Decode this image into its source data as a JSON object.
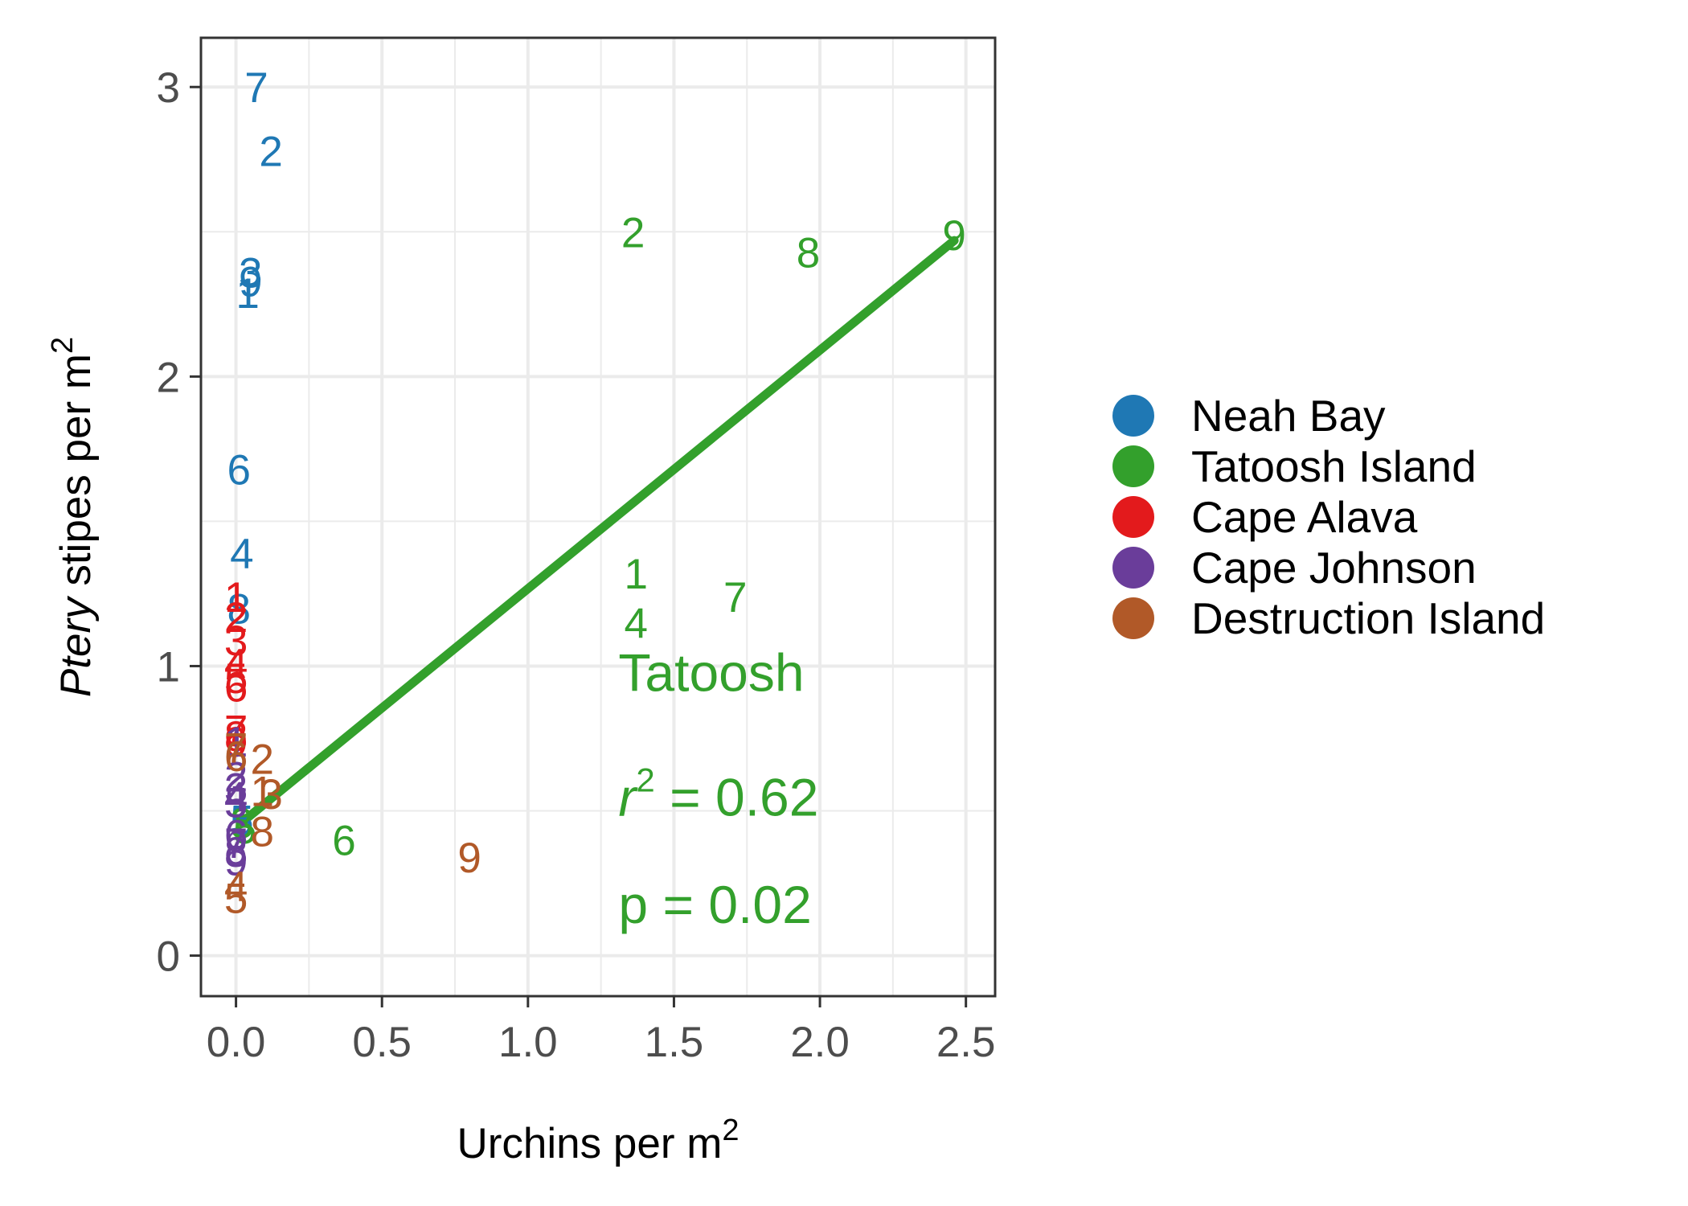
{
  "chart_data": {
    "type": "scatter",
    "xlabel": "Urchins per m",
    "xlabel_sup": "2",
    "ylabel_italic": "Ptery",
    "ylabel": " stipes per m",
    "ylabel_sup": "2",
    "xlim": [
      -0.12,
      2.6
    ],
    "ylim": [
      -0.14,
      3.17
    ],
    "x_ticks": [
      0,
      0.5,
      1,
      1.5,
      2,
      2.5
    ],
    "x_tick_labels": [
      "0.0",
      "0.5",
      "1.0",
      "1.5",
      "2.0",
      "2.5"
    ],
    "y_ticks": [
      0,
      1,
      2,
      3
    ],
    "y_tick_labels": [
      "0",
      "1",
      "2",
      "3"
    ],
    "grid": true,
    "legend_position": "right",
    "series": [
      {
        "name": "Neah Bay",
        "color": "#1f78b4",
        "points": [
          {
            "label": "7",
            "x": 0.07,
            "y": 3.0
          },
          {
            "label": "2",
            "x": 0.12,
            "y": 2.78
          },
          {
            "label": "3",
            "x": 0.05,
            "y": 2.36
          },
          {
            "label": "9",
            "x": 0.05,
            "y": 2.33
          },
          {
            "label": "1",
            "x": 0.04,
            "y": 2.29
          },
          {
            "label": "6",
            "x": 0.01,
            "y": 1.68
          },
          {
            "label": "4",
            "x": 0.02,
            "y": 1.39
          },
          {
            "label": "8",
            "x": 0.01,
            "y": 1.2
          },
          {
            "label": "5",
            "x": 0.02,
            "y": 0.47
          }
        ]
      },
      {
        "name": "Tatoosh Island",
        "color": "#33a02c",
        "points": [
          {
            "label": "2",
            "x": 1.36,
            "y": 2.5
          },
          {
            "label": "8",
            "x": 1.96,
            "y": 2.43
          },
          {
            "label": "9",
            "x": 2.46,
            "y": 2.49
          },
          {
            "label": "1",
            "x": 1.37,
            "y": 1.32
          },
          {
            "label": "7",
            "x": 1.71,
            "y": 1.24
          },
          {
            "label": "4",
            "x": 1.37,
            "y": 1.15
          },
          {
            "label": "6",
            "x": 0.37,
            "y": 0.4
          },
          {
            "label": "3",
            "x": 0.02,
            "y": 0.46
          },
          {
            "label": "5",
            "x": 0.03,
            "y": 0.44
          }
        ]
      },
      {
        "name": "Cape Alava",
        "color": "#e31a1c",
        "points": [
          {
            "label": "1",
            "x": 0.0,
            "y": 1.24
          },
          {
            "label": "2",
            "x": 0.0,
            "y": 1.17
          },
          {
            "label": "3",
            "x": 0.0,
            "y": 1.09
          },
          {
            "label": "4",
            "x": 0.0,
            "y": 1.01
          },
          {
            "label": "5",
            "x": 0.0,
            "y": 0.96
          },
          {
            "label": "6",
            "x": 0.0,
            "y": 0.93
          },
          {
            "label": "7",
            "x": 0.0,
            "y": 0.78
          },
          {
            "label": "8",
            "x": 0.0,
            "y": 0.76
          },
          {
            "label": "9",
            "x": 0.0,
            "y": 0.74
          }
        ]
      },
      {
        "name": "Cape Johnson",
        "color": "#6a3d9a",
        "points": [
          {
            "label": "1",
            "x": 0.0,
            "y": 0.74
          },
          {
            "label": "2",
            "x": 0.0,
            "y": 0.62
          },
          {
            "label": "3",
            "x": 0.0,
            "y": 0.58
          },
          {
            "label": "4",
            "x": 0.0,
            "y": 0.55
          },
          {
            "label": "5",
            "x": 0.0,
            "y": 0.53
          },
          {
            "label": "6",
            "x": 0.0,
            "y": 0.42
          },
          {
            "label": "7",
            "x": 0.0,
            "y": 0.39
          },
          {
            "label": "8",
            "x": 0.0,
            "y": 0.36
          },
          {
            "label": "9",
            "x": 0.0,
            "y": 0.33
          }
        ]
      },
      {
        "name": "Destruction Island",
        "color": "#b15928",
        "points": [
          {
            "label": "7",
            "x": 0.0,
            "y": 0.72
          },
          {
            "label": "6",
            "x": 0.0,
            "y": 0.69
          },
          {
            "label": "2",
            "x": 0.09,
            "y": 0.68
          },
          {
            "label": "1",
            "x": 0.09,
            "y": 0.57
          },
          {
            "label": "3",
            "x": 0.12,
            "y": 0.56
          },
          {
            "label": "8",
            "x": 0.09,
            "y": 0.43
          },
          {
            "label": "9",
            "x": 0.8,
            "y": 0.34
          },
          {
            "label": "4",
            "x": 0.0,
            "y": 0.24
          },
          {
            "label": "5",
            "x": 0.0,
            "y": 0.2
          }
        ]
      }
    ],
    "fit_line": {
      "series": "Tatoosh Island",
      "color": "#33a02c",
      "x": [
        0.02,
        2.46
      ],
      "y": [
        0.46,
        2.47
      ]
    },
    "annotations": {
      "color": "#33a02c",
      "site": "Tatoosh",
      "r2_symbol": "r",
      "r2_sup": "2",
      "r2_eq": " = 0.62",
      "p_text": "p = 0.02",
      "x": 1.31,
      "site_y": 0.98,
      "r2_y": 0.55,
      "p_y": 0.18
    }
  }
}
